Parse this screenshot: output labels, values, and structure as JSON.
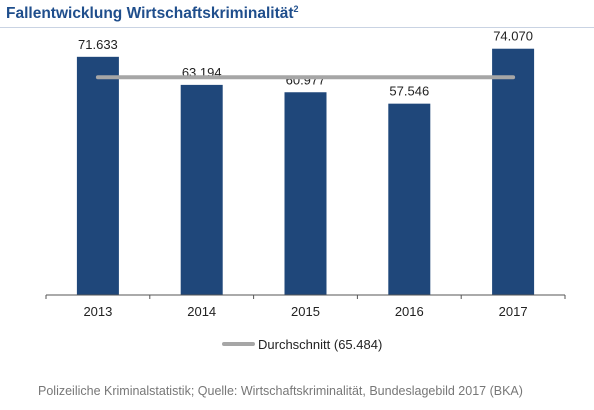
{
  "page": {
    "title": "Fallentwicklung Wirtschaftskriminalität",
    "title_footnote": "2",
    "source": "Polizeiliche Kriminalstatistik; Quelle: Wirtschaftskriminalität, Bundeslagebild 2017 (BKA)"
  },
  "chart_data": {
    "type": "bar",
    "title": "Fallentwicklung Wirtschaftskriminalität²",
    "categories": [
      "2013",
      "2014",
      "2015",
      "2016",
      "2017"
    ],
    "values": [
      71633,
      63194,
      60977,
      57546,
      74070
    ],
    "value_labels": [
      "71.633",
      "63.194",
      "60.977",
      "57.546",
      "74.070"
    ],
    "ylim": [
      0,
      80000
    ],
    "grid": false,
    "bar_color": "#1f477a",
    "reference_line": {
      "name": "Durchschnitt (65.484)",
      "value": 65484,
      "color": "#a6a6a6"
    },
    "legend": {
      "placement": "bottom-center",
      "entries": [
        "Durchschnitt (65.484)"
      ]
    }
  }
}
